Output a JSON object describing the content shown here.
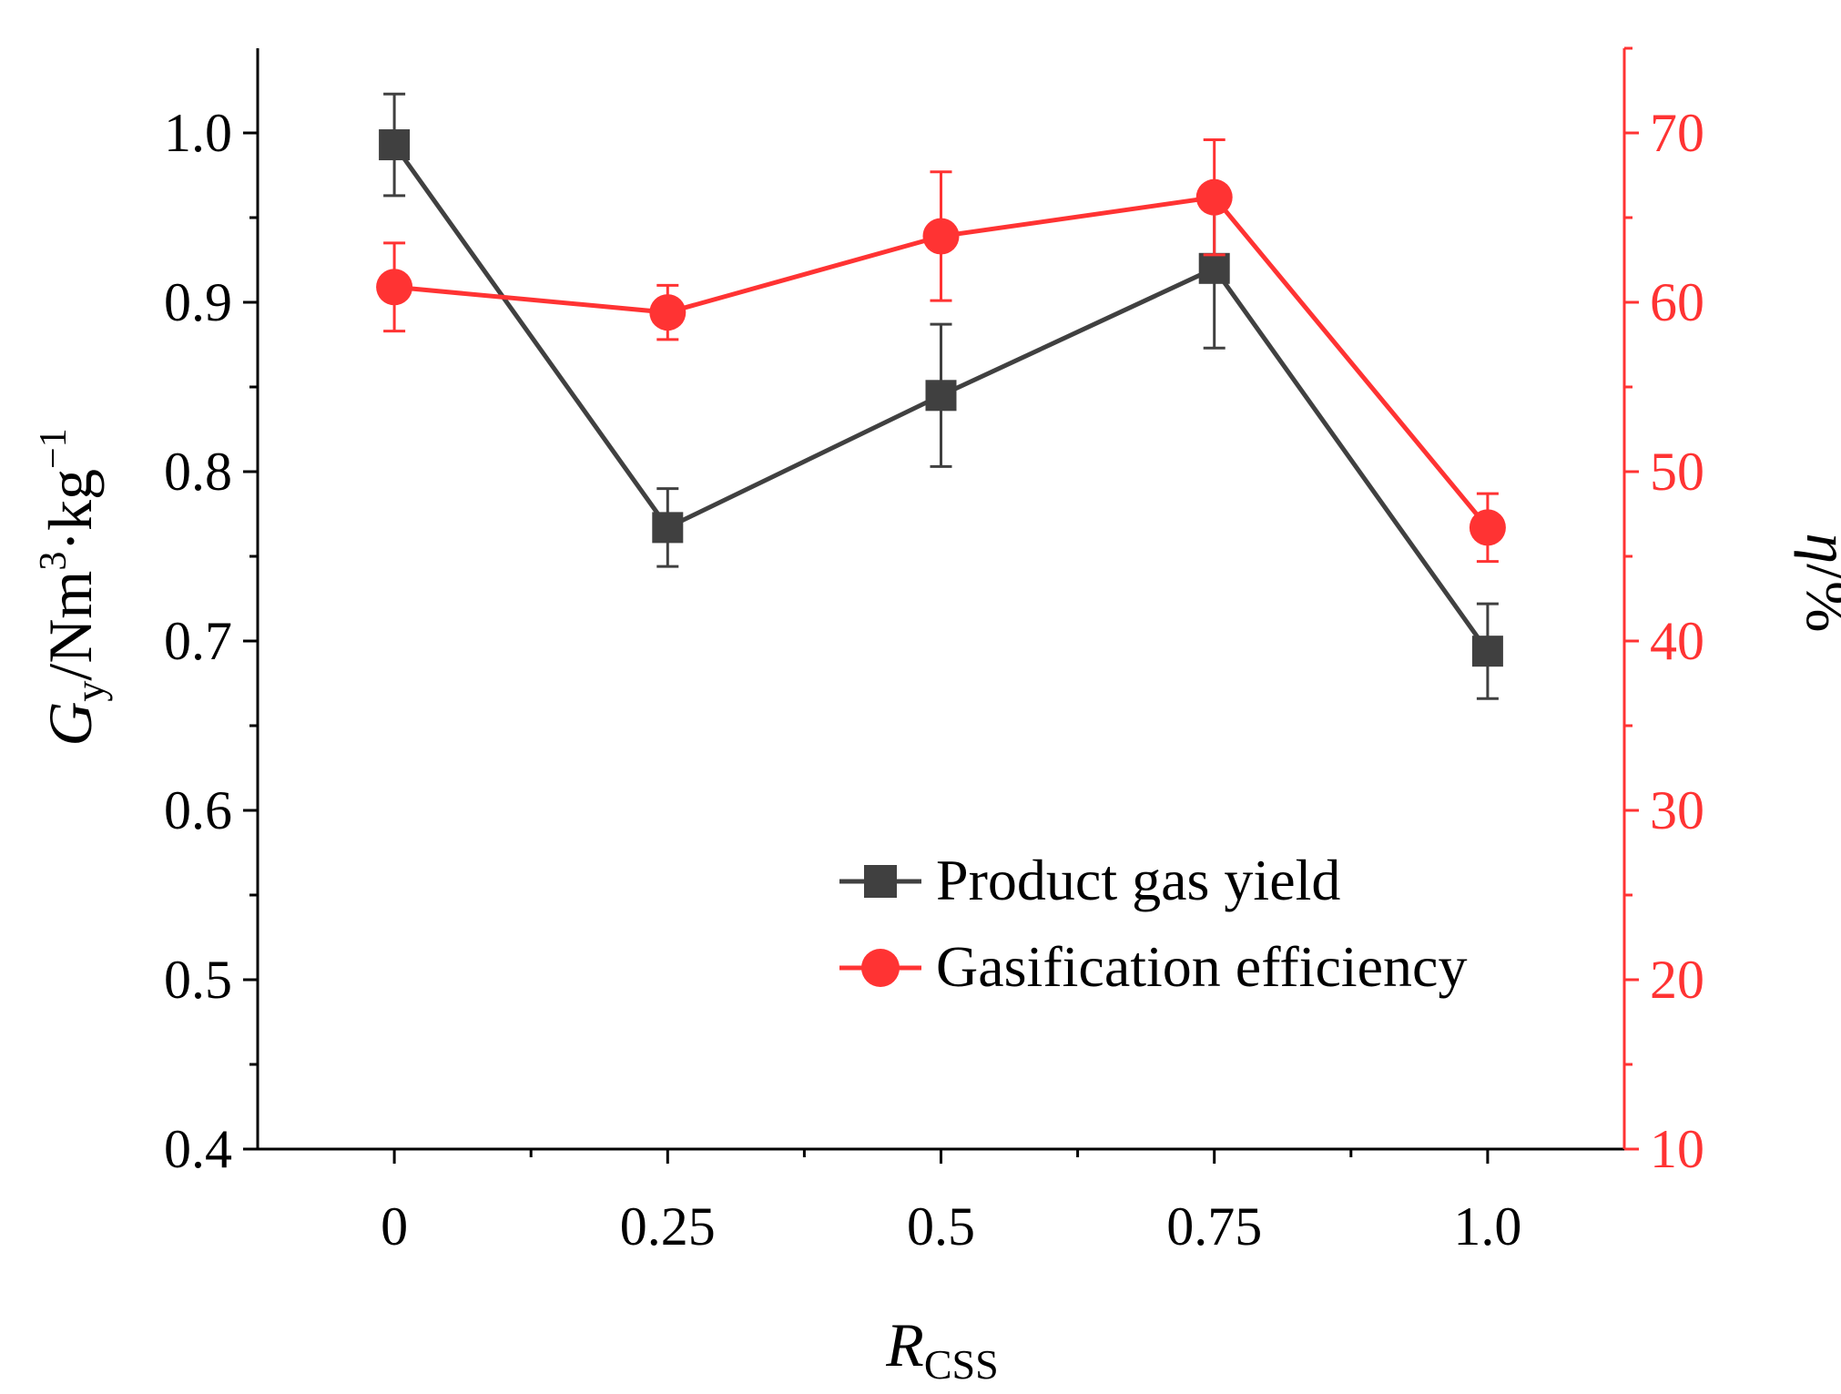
{
  "chart_data": {
    "type": "line",
    "x_categories": [
      "0",
      "0.25",
      "0.5",
      "0.75",
      "1.0"
    ],
    "x": [
      0,
      0.25,
      0.5,
      0.75,
      1.0
    ],
    "xlabel": {
      "main": "R",
      "sub": "CSS"
    },
    "ylabel_left": {
      "main": "G",
      "sub": "y",
      "unit_a": "/Nm",
      "sup_a": "3",
      "unit_b": "·kg",
      "sup_b": "−1"
    },
    "ylabel_right": {
      "main": "η",
      "unit": "/%"
    },
    "ylim_left": [
      0.4,
      1.05
    ],
    "ylim_right": [
      10,
      75
    ],
    "yticks_left": [
      "0.4",
      "0.5",
      "0.6",
      "0.7",
      "0.8",
      "0.9",
      "1.0"
    ],
    "yticks_right": [
      "10",
      "20",
      "30",
      "40",
      "50",
      "60",
      "70"
    ],
    "legend_position": "lower-right",
    "grid": false,
    "series": [
      {
        "name": "Product gas yield",
        "axis": "left",
        "marker": "square",
        "color": "#404040",
        "values": [
          0.993,
          0.767,
          0.845,
          0.92,
          0.694
        ],
        "error": [
          0.03,
          0.023,
          0.042,
          0.047,
          0.028
        ]
      },
      {
        "name": "Gasification efficiency",
        "axis": "right",
        "marker": "circle",
        "color": "#ff3333",
        "values": [
          60.9,
          59.4,
          63.9,
          66.2,
          46.7
        ],
        "error": [
          2.6,
          1.6,
          3.8,
          3.4,
          2.0
        ]
      }
    ]
  }
}
